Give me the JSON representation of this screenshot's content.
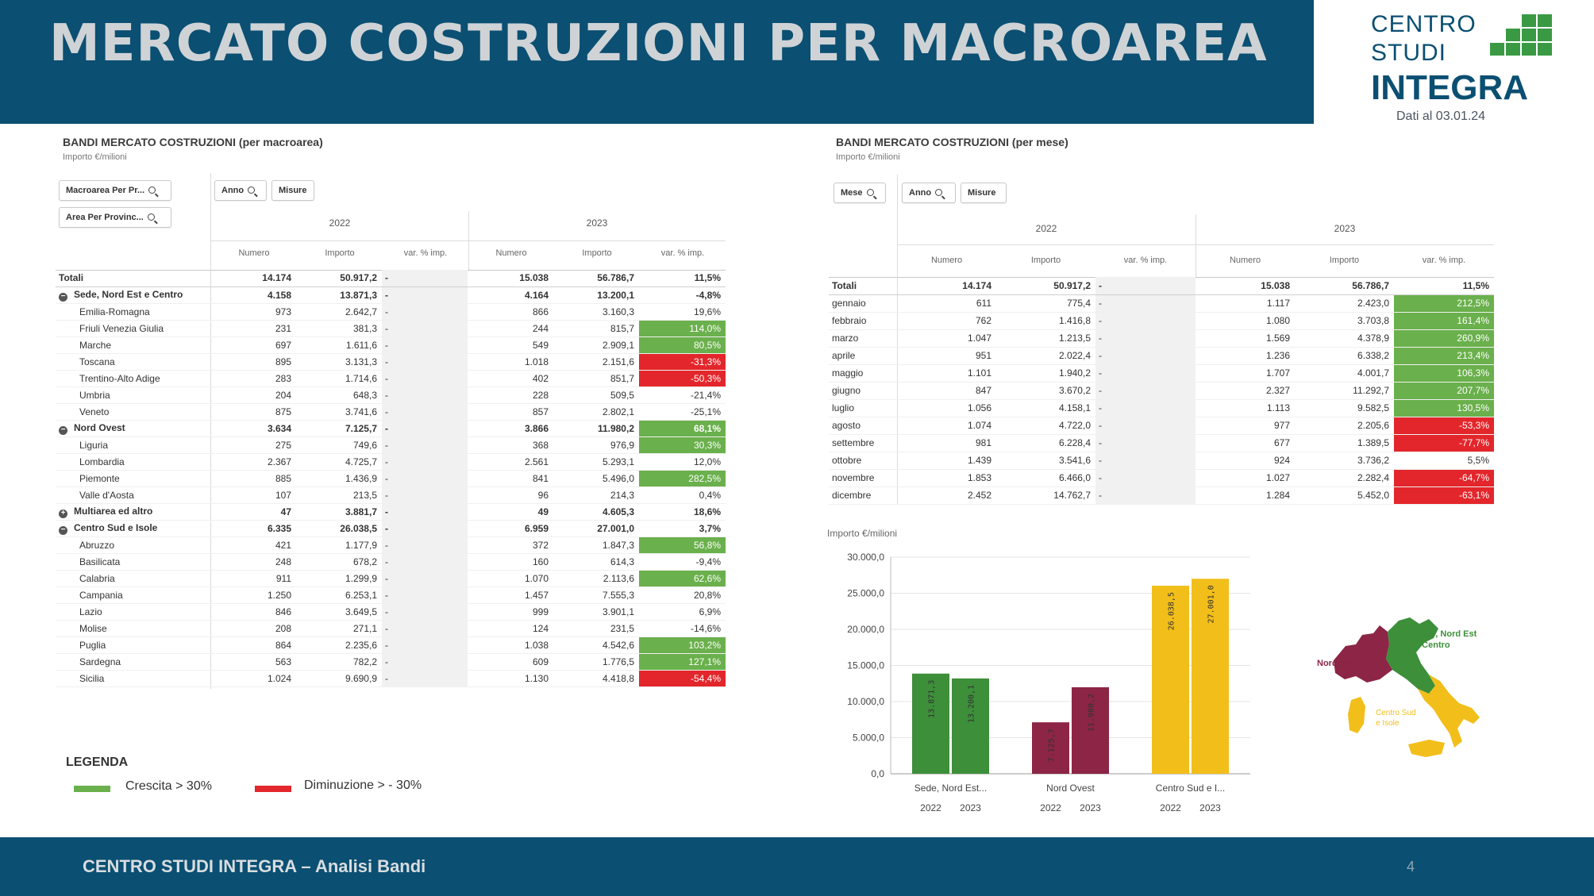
{
  "header": {
    "title": "MERCATO COSTRUZIONI PER MACROAREA"
  },
  "logo": {
    "line1": "CENTRO",
    "line2": "STUDI",
    "line3": "INTEGRA",
    "date": "Dati al 03.01.24",
    "colors": {
      "green": "#3a9a44",
      "blue": "#0b4f72"
    }
  },
  "left_panel": {
    "title": "BANDI MERCATO COSTRUZIONI (per macroarea)",
    "subtitle": "Importo €/milioni",
    "filters": [
      {
        "label": "Macroarea Per Pr..."
      },
      {
        "label": "Area Per Provinc..."
      },
      {
        "label": "Anno"
      },
      {
        "label": "Misure"
      }
    ],
    "years": [
      "2022",
      "2023"
    ],
    "columns": [
      "Numero",
      "Importo",
      "var. % imp.",
      "Numero",
      "Importo",
      "var. % imp."
    ],
    "rows": [
      {
        "label": "Totali",
        "bold": true,
        "toggle": "",
        "n22": "14.174",
        "i22": "50.917,2",
        "v22": "-",
        "n23": "15.038",
        "i23": "56.786,7",
        "v23": "11,5%",
        "hl": ""
      },
      {
        "label": "Sede, Nord Est e Centro",
        "bold": true,
        "toggle": "⊖",
        "n22": "4.158",
        "i22": "13.871,3",
        "v22": "-",
        "n23": "4.164",
        "i23": "13.200,1",
        "v23": "-4,8%",
        "hl": ""
      },
      {
        "label": "Emilia-Romagna",
        "bold": false,
        "toggle": "",
        "n22": "973",
        "i22": "2.642,7",
        "v22": "-",
        "n23": "866",
        "i23": "3.160,3",
        "v23": "19,6%",
        "hl": ""
      },
      {
        "label": "Friuli Venezia Giulia",
        "bold": false,
        "toggle": "",
        "n22": "231",
        "i22": "381,3",
        "v22": "-",
        "n23": "244",
        "i23": "815,7",
        "v23": "114,0%",
        "hl": "green"
      },
      {
        "label": "Marche",
        "bold": false,
        "toggle": "",
        "n22": "697",
        "i22": "1.611,6",
        "v22": "-",
        "n23": "549",
        "i23": "2.909,1",
        "v23": "80,5%",
        "hl": "green"
      },
      {
        "label": "Toscana",
        "bold": false,
        "toggle": "",
        "n22": "895",
        "i22": "3.131,3",
        "v22": "-",
        "n23": "1.018",
        "i23": "2.151,6",
        "v23": "-31,3%",
        "hl": "red"
      },
      {
        "label": "Trentino-Alto Adige",
        "bold": false,
        "toggle": "",
        "n22": "283",
        "i22": "1.714,6",
        "v22": "-",
        "n23": "402",
        "i23": "851,7",
        "v23": "-50,3%",
        "hl": "red"
      },
      {
        "label": "Umbria",
        "bold": false,
        "toggle": "",
        "n22": "204",
        "i22": "648,3",
        "v22": "-",
        "n23": "228",
        "i23": "509,5",
        "v23": "-21,4%",
        "hl": ""
      },
      {
        "label": "Veneto",
        "bold": false,
        "toggle": "",
        "n22": "875",
        "i22": "3.741,6",
        "v22": "-",
        "n23": "857",
        "i23": "2.802,1",
        "v23": "-25,1%",
        "hl": ""
      },
      {
        "label": "Nord Ovest",
        "bold": true,
        "toggle": "⊖",
        "n22": "3.634",
        "i22": "7.125,7",
        "v22": "-",
        "n23": "3.866",
        "i23": "11.980,2",
        "v23": "68,1%",
        "hl": "green"
      },
      {
        "label": "Liguria",
        "bold": false,
        "toggle": "",
        "n22": "275",
        "i22": "749,6",
        "v22": "-",
        "n23": "368",
        "i23": "976,9",
        "v23": "30,3%",
        "hl": "green"
      },
      {
        "label": "Lombardia",
        "bold": false,
        "toggle": "",
        "n22": "2.367",
        "i22": "4.725,7",
        "v22": "-",
        "n23": "2.561",
        "i23": "5.293,1",
        "v23": "12,0%",
        "hl": ""
      },
      {
        "label": "Piemonte",
        "bold": false,
        "toggle": "",
        "n22": "885",
        "i22": "1.436,9",
        "v22": "-",
        "n23": "841",
        "i23": "5.496,0",
        "v23": "282,5%",
        "hl": "green"
      },
      {
        "label": "Valle d'Aosta",
        "bold": false,
        "toggle": "",
        "n22": "107",
        "i22": "213,5",
        "v22": "-",
        "n23": "96",
        "i23": "214,3",
        "v23": "0,4%",
        "hl": ""
      },
      {
        "label": "Multiarea ed altro",
        "bold": true,
        "toggle": "⊕",
        "n22": "47",
        "i22": "3.881,7",
        "v22": "-",
        "n23": "49",
        "i23": "4.605,3",
        "v23": "18,6%",
        "hl": ""
      },
      {
        "label": "Centro Sud e Isole",
        "bold": true,
        "toggle": "⊖",
        "n22": "6.335",
        "i22": "26.038,5",
        "v22": "-",
        "n23": "6.959",
        "i23": "27.001,0",
        "v23": "3,7%",
        "hl": ""
      },
      {
        "label": "Abruzzo",
        "bold": false,
        "toggle": "",
        "n22": "421",
        "i22": "1.177,9",
        "v22": "-",
        "n23": "372",
        "i23": "1.847,3",
        "v23": "56,8%",
        "hl": "green"
      },
      {
        "label": "Basilicata",
        "bold": false,
        "toggle": "",
        "n22": "248",
        "i22": "678,2",
        "v22": "-",
        "n23": "160",
        "i23": "614,3",
        "v23": "-9,4%",
        "hl": ""
      },
      {
        "label": "Calabria",
        "bold": false,
        "toggle": "",
        "n22": "911",
        "i22": "1.299,9",
        "v22": "-",
        "n23": "1.070",
        "i23": "2.113,6",
        "v23": "62,6%",
        "hl": "green"
      },
      {
        "label": "Campania",
        "bold": false,
        "toggle": "",
        "n22": "1.250",
        "i22": "6.253,1",
        "v22": "-",
        "n23": "1.457",
        "i23": "7.555,3",
        "v23": "20,8%",
        "hl": ""
      },
      {
        "label": "Lazio",
        "bold": false,
        "toggle": "",
        "n22": "846",
        "i22": "3.649,5",
        "v22": "-",
        "n23": "999",
        "i23": "3.901,1",
        "v23": "6,9%",
        "hl": ""
      },
      {
        "label": "Molise",
        "bold": false,
        "toggle": "",
        "n22": "208",
        "i22": "271,1",
        "v22": "-",
        "n23": "124",
        "i23": "231,5",
        "v23": "-14,6%",
        "hl": ""
      },
      {
        "label": "Puglia",
        "bold": false,
        "toggle": "",
        "n22": "864",
        "i22": "2.235,6",
        "v22": "-",
        "n23": "1.038",
        "i23": "4.542,6",
        "v23": "103,2%",
        "hl": "green"
      },
      {
        "label": "Sardegna",
        "bold": false,
        "toggle": "",
        "n22": "563",
        "i22": "782,2",
        "v22": "-",
        "n23": "609",
        "i23": "1.776,5",
        "v23": "127,1%",
        "hl": "green"
      },
      {
        "label": "Sicilia",
        "bold": false,
        "toggle": "",
        "n22": "1.024",
        "i22": "9.690,9",
        "v22": "-",
        "n23": "1.130",
        "i23": "4.418,8",
        "v23": "-54,4%",
        "hl": "red"
      }
    ]
  },
  "right_panel": {
    "title": "BANDI MERCATO COSTRUZIONI (per mese)",
    "subtitle": "Importo €/milioni",
    "filters": [
      {
        "label": "Mese"
      },
      {
        "label": "Anno"
      },
      {
        "label": "Misure"
      }
    ],
    "years": [
      "2022",
      "2023"
    ],
    "columns": [
      "Numero",
      "Importo",
      "var. % imp.",
      "Numero",
      "Importo",
      "var. % imp."
    ],
    "rows": [
      {
        "label": "Totali",
        "bold": true,
        "n22": "14.174",
        "i22": "50.917,2",
        "v22": "-",
        "n23": "15.038",
        "i23": "56.786,7",
        "v23": "11,5%",
        "hl": ""
      },
      {
        "label": "gennaio",
        "bold": false,
        "n22": "611",
        "i22": "775,4",
        "v22": "-",
        "n23": "1.117",
        "i23": "2.423,0",
        "v23": "212,5%",
        "hl": "green"
      },
      {
        "label": "febbraio",
        "bold": false,
        "n22": "762",
        "i22": "1.416,8",
        "v22": "-",
        "n23": "1.080",
        "i23": "3.703,8",
        "v23": "161,4%",
        "hl": "green"
      },
      {
        "label": "marzo",
        "bold": false,
        "n22": "1.047",
        "i22": "1.213,5",
        "v22": "-",
        "n23": "1.569",
        "i23": "4.378,9",
        "v23": "260,9%",
        "hl": "green"
      },
      {
        "label": "aprile",
        "bold": false,
        "n22": "951",
        "i22": "2.022,4",
        "v22": "-",
        "n23": "1.236",
        "i23": "6.338,2",
        "v23": "213,4%",
        "hl": "green"
      },
      {
        "label": "maggio",
        "bold": false,
        "n22": "1.101",
        "i22": "1.940,2",
        "v22": "-",
        "n23": "1.707",
        "i23": "4.001,7",
        "v23": "106,3%",
        "hl": "green"
      },
      {
        "label": "giugno",
        "bold": false,
        "n22": "847",
        "i22": "3.670,2",
        "v22": "-",
        "n23": "2.327",
        "i23": "11.292,7",
        "v23": "207,7%",
        "hl": "green"
      },
      {
        "label": "luglio",
        "bold": false,
        "n22": "1.056",
        "i22": "4.158,1",
        "v22": "-",
        "n23": "1.113",
        "i23": "9.582,5",
        "v23": "130,5%",
        "hl": "green"
      },
      {
        "label": "agosto",
        "bold": false,
        "n22": "1.074",
        "i22": "4.722,0",
        "v22": "-",
        "n23": "977",
        "i23": "2.205,6",
        "v23": "-53,3%",
        "hl": "red"
      },
      {
        "label": "settembre",
        "bold": false,
        "n22": "981",
        "i22": "6.228,4",
        "v22": "-",
        "n23": "677",
        "i23": "1.389,5",
        "v23": "-77,7%",
        "hl": "red"
      },
      {
        "label": "ottobre",
        "bold": false,
        "n22": "1.439",
        "i22": "3.541,6",
        "v22": "-",
        "n23": "924",
        "i23": "3.736,2",
        "v23": "5,5%",
        "hl": ""
      },
      {
        "label": "novembre",
        "bold": false,
        "n22": "1.853",
        "i22": "6.466,0",
        "v22": "-",
        "n23": "1.027",
        "i23": "2.282,4",
        "v23": "-64,7%",
        "hl": "red"
      },
      {
        "label": "dicembre",
        "bold": false,
        "n22": "2.452",
        "i22": "14.762,7",
        "v22": "-",
        "n23": "1.284",
        "i23": "5.452,0",
        "v23": "-63,1%",
        "hl": "red"
      }
    ]
  },
  "chart_data": {
    "type": "bar",
    "ylabel": "Importo €/milioni",
    "ylim": [
      0,
      30000
    ],
    "yticks": [
      "0,0",
      "5.000,0",
      "10.000,0",
      "15.000,0",
      "20.000,0",
      "25.000,0",
      "30.000,0"
    ],
    "ytick_values": [
      0,
      5000,
      10000,
      15000,
      20000,
      25000,
      30000
    ],
    "categories": [
      "Sede, Nord Est...",
      "Nord Ovest",
      "Centro Sud e I..."
    ],
    "subcategories": [
      "2022",
      "2023"
    ],
    "values": [
      [
        13871.3,
        13200.1
      ],
      [
        7125.7,
        11980.2
      ],
      [
        26038.5,
        27001.0
      ]
    ],
    "value_labels": [
      [
        "13.871,3",
        "13.200,1"
      ],
      [
        "7.125,7",
        "11.980,2"
      ],
      [
        "26.038,5",
        "27.001,0"
      ]
    ],
    "colors": [
      "#3d8f3a",
      "#8c2546",
      "#f2be1a"
    ],
    "grid": true
  },
  "map": {
    "labels": {
      "north_east": "Sede, Nord Est e Centro",
      "north_west": "Nord Ovest",
      "south": "Centro Sud e Isole"
    },
    "colors": {
      "north_east": "#3d8f3a",
      "north_west": "#8c2546",
      "south": "#f2be1a"
    }
  },
  "legend": {
    "title": "LEGENDA",
    "items": [
      {
        "label": "Crescita > 30%",
        "color": "#6ab04c"
      },
      {
        "label": "Diminuzione > - 30%",
        "color": "#e3262b"
      }
    ]
  },
  "footer": {
    "text": "CENTRO STUDI INTEGRA – Analisi Bandi",
    "page": "4"
  }
}
